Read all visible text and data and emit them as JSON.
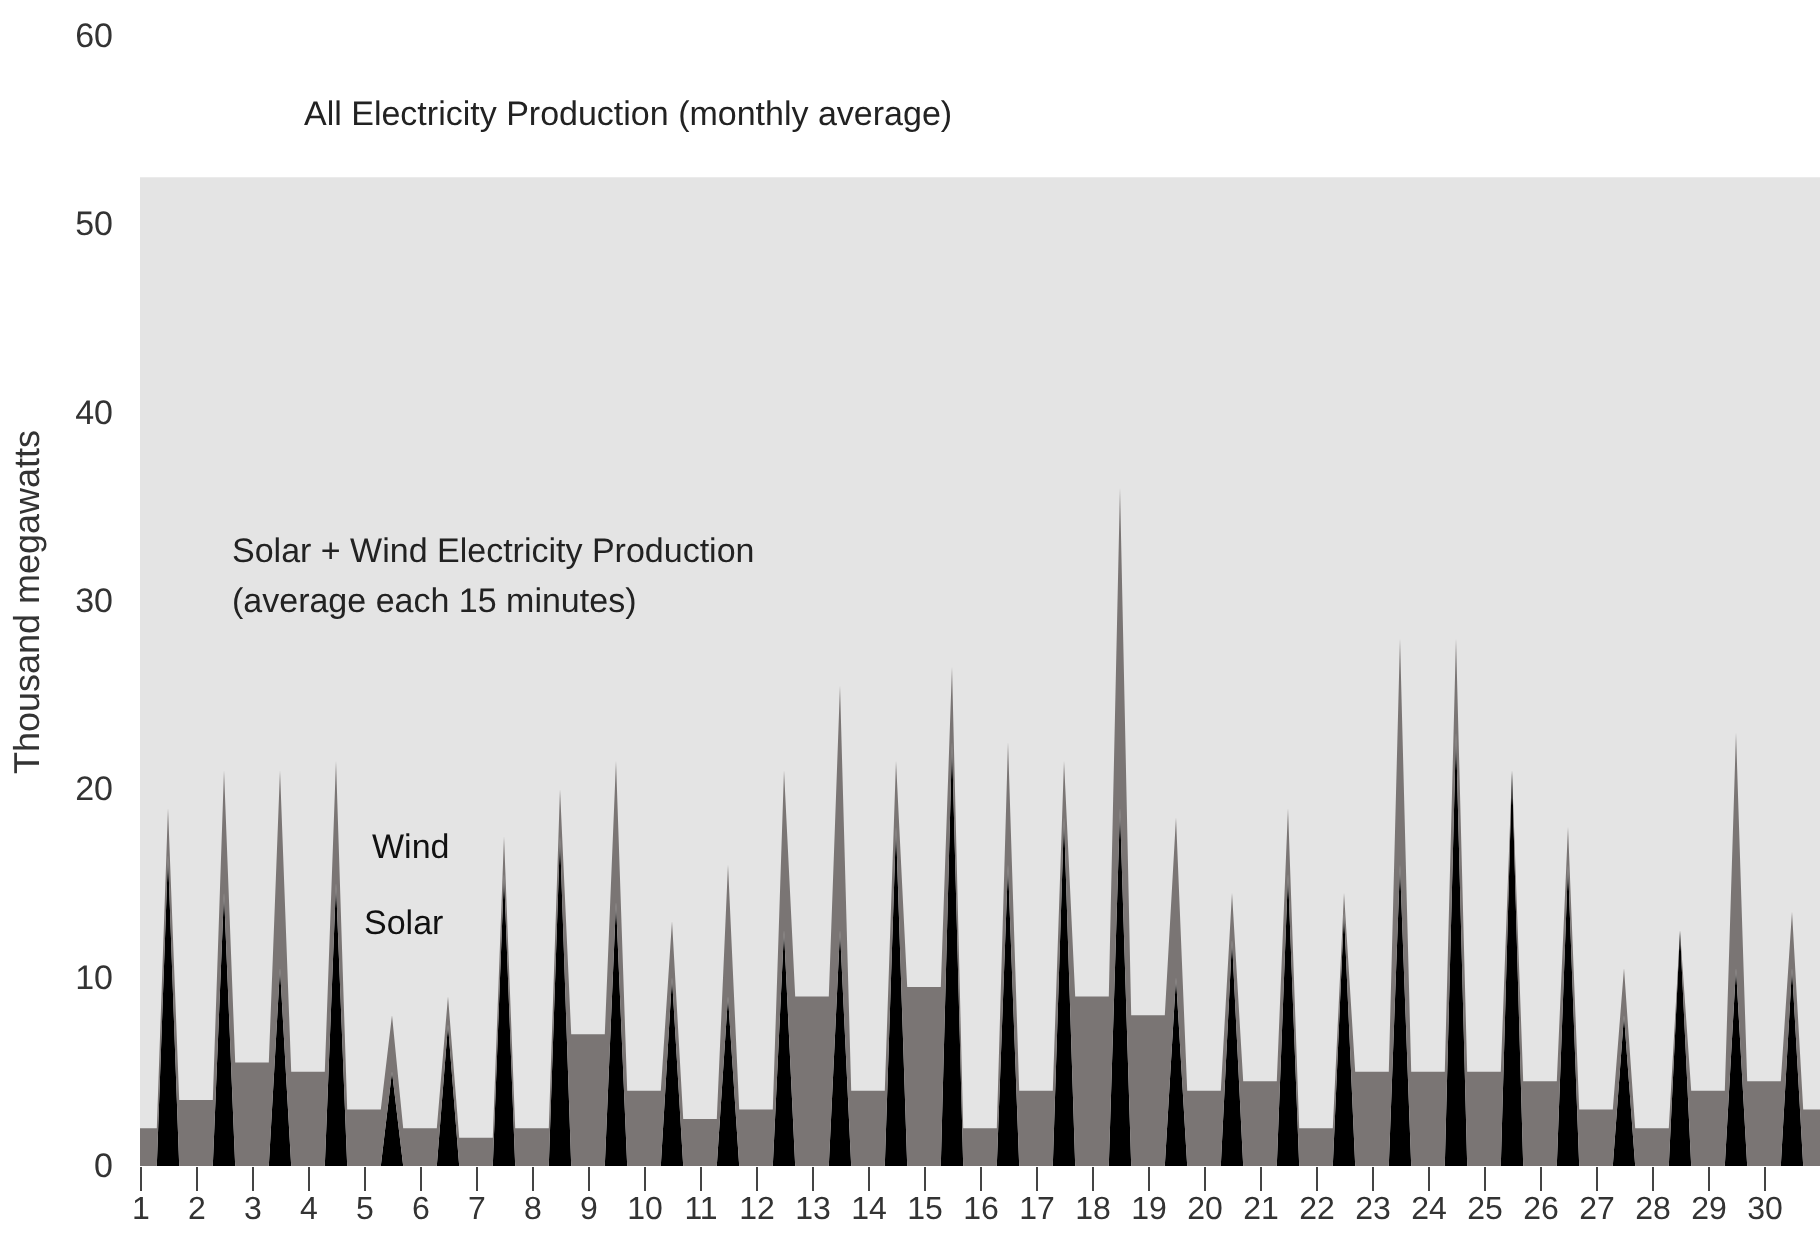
{
  "chart_data": {
    "type": "area",
    "stacked": true,
    "ylabel": "Thousand megawatts",
    "grid": false,
    "xlim": [
      1,
      31
    ],
    "xticks": [
      1,
      2,
      3,
      4,
      5,
      6,
      7,
      8,
      9,
      10,
      11,
      12,
      13,
      14,
      15,
      16,
      17,
      18,
      19,
      20,
      21,
      22,
      23,
      24,
      25,
      26,
      27,
      28,
      29,
      30
    ],
    "ylim": [
      0,
      60
    ],
    "yticks": [
      0,
      10,
      20,
      30,
      40,
      50,
      60
    ],
    "annotations": [
      "Solar + Wind Electricity Production\n(average each 15 minutes)"
    ],
    "bands": [
      {
        "axis": "y",
        "from": 0,
        "to": 52.5,
        "label": "All Electricity Production (monthly average)",
        "color": "#e4e4e4"
      }
    ],
    "x": [
      1,
      1.3,
      1.5,
      1.7,
      2,
      2.3,
      2.5,
      2.7,
      3,
      3.3,
      3.5,
      3.7,
      4,
      4.3,
      4.5,
      4.7,
      5,
      5.3,
      5.5,
      5.7,
      6,
      6.3,
      6.5,
      6.7,
      7,
      7.3,
      7.5,
      7.7,
      8,
      8.3,
      8.5,
      8.7,
      9,
      9.3,
      9.5,
      9.7,
      10,
      10.3,
      10.5,
      10.7,
      11,
      11.3,
      11.5,
      11.7,
      12,
      12.3,
      12.5,
      12.7,
      13,
      13.3,
      13.5,
      13.7,
      14,
      14.3,
      14.5,
      14.7,
      15,
      15.3,
      15.5,
      15.7,
      16,
      16.3,
      16.5,
      16.7,
      17,
      17.3,
      17.5,
      17.7,
      18,
      18.3,
      18.5,
      18.7,
      19,
      19.3,
      19.5,
      19.7,
      20,
      20.3,
      20.5,
      20.7,
      21,
      21.3,
      21.5,
      21.7,
      22,
      22.3,
      22.5,
      22.7,
      23,
      23.3,
      23.5,
      23.7,
      24,
      24.3,
      24.5,
      24.7,
      25,
      25.3,
      25.5,
      25.7,
      26,
      26.3,
      26.5,
      26.7,
      27,
      27.3,
      27.5,
      27.7,
      28,
      28.3,
      28.5,
      28.7,
      29,
      29.3,
      29.5,
      29.7,
      30,
      30.3,
      30.5,
      30.7,
      31
    ],
    "series": [
      {
        "name": "Solar",
        "color": "#000000",
        "values": [
          0,
          0,
          16.5,
          0,
          0,
          0,
          14.5,
          0,
          0,
          0,
          10.5,
          0,
          0,
          0,
          15,
          0,
          0,
          0,
          5,
          0,
          0,
          0,
          7.5,
          0,
          0,
          0,
          15.5,
          0,
          0,
          0,
          17.5,
          0,
          0,
          0,
          14,
          0,
          0,
          0,
          10,
          0,
          0,
          0,
          9,
          0,
          0,
          0,
          12.5,
          0,
          0,
          0,
          12.5,
          0,
          0,
          0,
          18,
          0,
          0,
          0,
          22.5,
          0,
          0,
          0,
          16,
          0,
          0,
          0,
          18.5,
          0,
          0,
          0,
          19,
          0,
          0,
          0,
          10,
          0,
          0,
          0,
          12,
          0,
          0,
          0,
          15.5,
          0,
          0,
          0,
          13.5,
          0,
          0,
          0,
          16,
          0,
          0,
          0,
          23,
          0,
          0,
          0,
          21,
          0,
          0,
          0,
          16,
          0,
          0,
          0,
          8,
          0,
          0,
          0,
          12.5,
          0,
          0,
          0,
          10.5,
          0,
          0,
          0,
          10.5,
          0,
          0
        ]
      },
      {
        "name": "Wind",
        "color": "#7a7574",
        "values": [
          2,
          2,
          2.5,
          3.5,
          3.5,
          3.5,
          6.5,
          5.5,
          5.5,
          5.5,
          10.5,
          5,
          5,
          5,
          6.5,
          3,
          3,
          3,
          3,
          2,
          2,
          2,
          1.5,
          1.5,
          1.5,
          1.5,
          2,
          2,
          2,
          2,
          2.5,
          7,
          7,
          7,
          7.5,
          4,
          4,
          4,
          3,
          2.5,
          2.5,
          2.5,
          7,
          3,
          3,
          3,
          8.5,
          9,
          9,
          9,
          13,
          4,
          4,
          4,
          3.5,
          9.5,
          9.5,
          9.5,
          4,
          2,
          2,
          2,
          6.5,
          4,
          4,
          4,
          3,
          9,
          9,
          9,
          17,
          8,
          8,
          8,
          8.5,
          4,
          4,
          4,
          2.5,
          4.5,
          4.5,
          4.5,
          3.5,
          2,
          2,
          2,
          1,
          5,
          5,
          5,
          12,
          5,
          5,
          5,
          5,
          5,
          5,
          5,
          0,
          4.5,
          4.5,
          4.5,
          2,
          3,
          3,
          3,
          2.5,
          2,
          2,
          2,
          0,
          4,
          4,
          4,
          12.5,
          4.5,
          4.5,
          4.5,
          3,
          3,
          3
        ]
      }
    ]
  }
}
